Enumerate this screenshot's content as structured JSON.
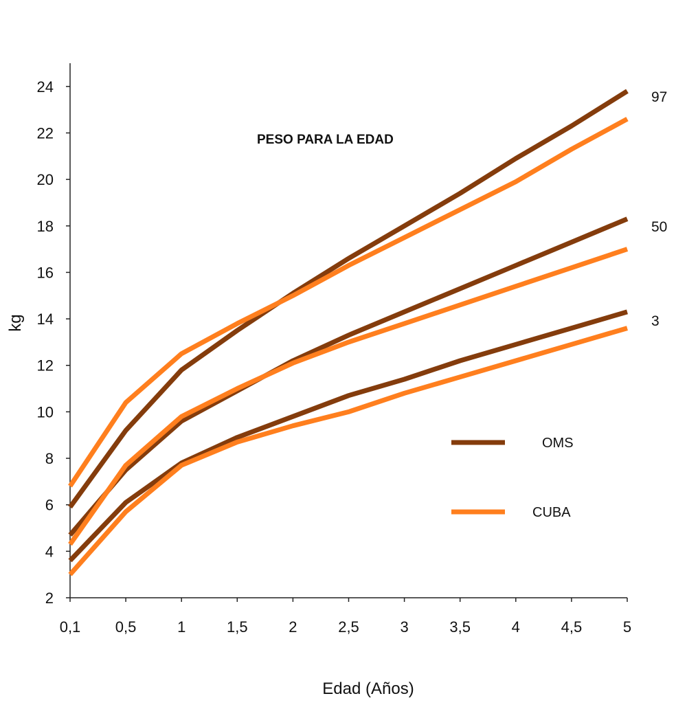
{
  "chart_data": {
    "type": "line",
    "title": "PESO PARA LA EDAD",
    "xlabel": "Edad (Años)",
    "ylabel": "kg",
    "categories": [
      "0,1",
      "0,5",
      "1",
      "1,5",
      "2",
      "2,5",
      "3",
      "3,5",
      "4",
      "4,5",
      "5"
    ],
    "yticks": [
      "2",
      "4",
      "6",
      "8",
      "10",
      "12",
      "14",
      "16",
      "18",
      "20",
      "22",
      "24"
    ],
    "ylim": [
      2,
      25
    ],
    "grid": false,
    "legend_position": "right",
    "legend": [
      {
        "name": "OMS",
        "color": "#843C0C"
      },
      {
        "name": "CUBA",
        "color": "#FF7F1E"
      }
    ],
    "percentile_labels": [
      "97",
      "50",
      "3"
    ],
    "series": [
      {
        "name": "OMS",
        "percentile": "97",
        "color": "#843C0C",
        "values": [
          5.9,
          9.2,
          11.8,
          13.5,
          15.1,
          16.6,
          18.0,
          19.4,
          20.9,
          22.3,
          23.8
        ]
      },
      {
        "name": "CUBA",
        "percentile": "97",
        "color": "#FF7F1E",
        "values": [
          6.8,
          10.4,
          12.5,
          13.8,
          15.0,
          16.3,
          17.5,
          18.7,
          19.9,
          21.3,
          22.6
        ]
      },
      {
        "name": "OMS",
        "percentile": "50",
        "color": "#843C0C",
        "values": [
          4.7,
          7.5,
          9.6,
          10.9,
          12.2,
          13.3,
          14.3,
          15.3,
          16.3,
          17.3,
          18.3
        ]
      },
      {
        "name": "CUBA",
        "percentile": "50",
        "color": "#FF7F1E",
        "values": [
          4.3,
          7.7,
          9.8,
          11.0,
          12.1,
          13.0,
          13.8,
          14.6,
          15.4,
          16.2,
          17.0
        ]
      },
      {
        "name": "OMS",
        "percentile": "3",
        "color": "#843C0C",
        "values": [
          3.6,
          6.1,
          7.8,
          8.9,
          9.8,
          10.7,
          11.4,
          12.2,
          12.9,
          13.6,
          14.3
        ]
      },
      {
        "name": "CUBA",
        "percentile": "3",
        "color": "#FF7F1E",
        "values": [
          3.0,
          5.7,
          7.7,
          8.7,
          9.4,
          10.0,
          10.8,
          11.5,
          12.2,
          12.9,
          13.6
        ]
      }
    ]
  }
}
